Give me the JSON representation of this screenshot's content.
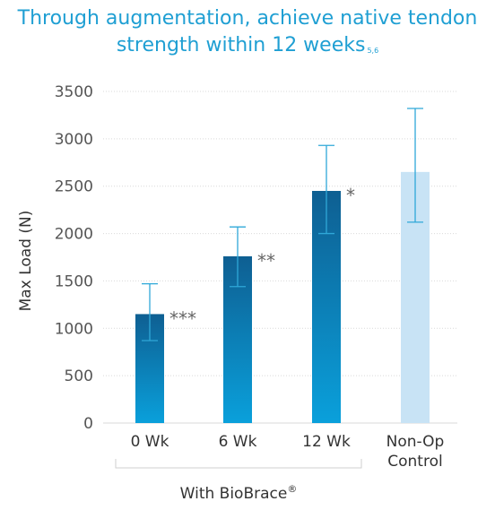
{
  "title": {
    "line1": "Through augmentation, achieve native tendon",
    "line2": "strength within 12 weeks",
    "refs": "5,6"
  },
  "chart_data": {
    "type": "bar",
    "ylabel": "Max Load (N)",
    "ylim": [
      0,
      3500
    ],
    "yticks": [
      0,
      500,
      1000,
      1500,
      2000,
      2500,
      3000,
      3500
    ],
    "grid": true,
    "categories": [
      "0 Wk",
      "6 Wk",
      "12 Wk",
      "Non-Op Control"
    ],
    "values": [
      1150,
      1760,
      2450,
      2650
    ],
    "error_high": [
      1470,
      2070,
      2930,
      3320
    ],
    "error_low": [
      870,
      1440,
      2000,
      2120
    ],
    "significance": [
      "***",
      "**",
      "*",
      ""
    ],
    "group_label": "With BioBrace",
    "group_mark": "®",
    "colors": {
      "biobrace_top": "#0e5f92",
      "biobrace_bottom": "#0aa0db",
      "control": "#c8e3f5",
      "error_bar": "#2fa8d8",
      "grid": "#d9d9d9"
    }
  }
}
